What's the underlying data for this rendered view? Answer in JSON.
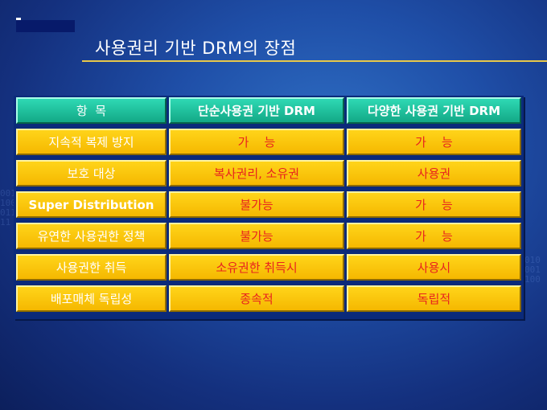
{
  "title": "사용권리 기반 DRM의 장점",
  "table": {
    "headers": [
      "항  목",
      "단순사용권 기반 DRM",
      "다양한 사용권 기반 DRM"
    ],
    "rows": [
      {
        "label": "지속적 복제 방지",
        "simple": "가    능",
        "various": "가    능"
      },
      {
        "label": "보호 대상",
        "simple": "복사권리, 소유권",
        "various": "사용권"
      },
      {
        "label": "Super Distribution",
        "simple": "불가능",
        "various": "가    능"
      },
      {
        "label": "유연한 사용권한 정책",
        "simple": "불가능",
        "various": "가    능"
      },
      {
        "label": "사용권한 취득",
        "simple": "소유권한 취득시",
        "various": "사용시"
      },
      {
        "label": "배포매체 독립성",
        "simple": "종속적",
        "various": "독립적"
      }
    ]
  }
}
